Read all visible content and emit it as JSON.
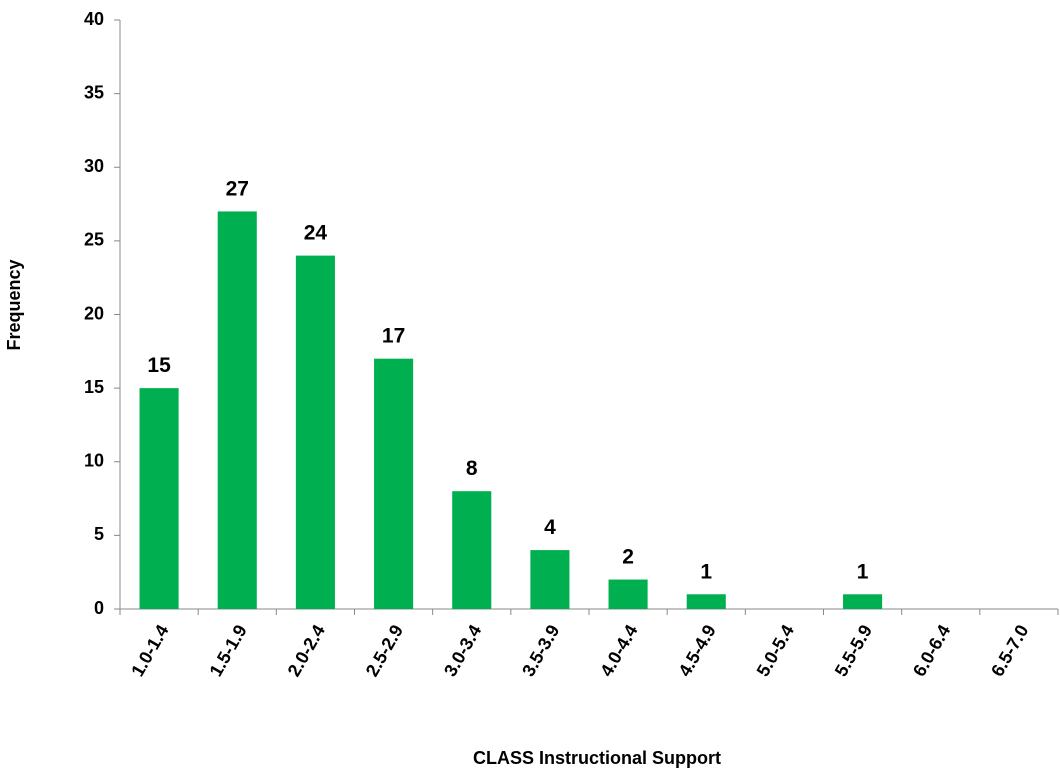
{
  "chart_data": {
    "type": "bar",
    "x_label": "CLASS Instructional Support",
    "y_label": "Frequency",
    "categories": [
      "1.0-1.4",
      "1.5-1.9",
      "2.0-2.4",
      "2.5-2.9",
      "3.0-3.4",
      "3.5-3.9",
      "4.0-4.4",
      "4.5-4.9",
      "5.0-5.4",
      "5.5-5.9",
      "6.0-6.4",
      "6.5-7.0"
    ],
    "values": [
      15,
      27,
      24,
      17,
      8,
      4,
      2,
      1,
      0,
      1,
      0,
      0
    ],
    "color": "#00b050",
    "ylim": [
      0,
      40
    ],
    "yticks": [
      0,
      5,
      10,
      15,
      20,
      25,
      30,
      35,
      40
    ],
    "grid": false
  }
}
